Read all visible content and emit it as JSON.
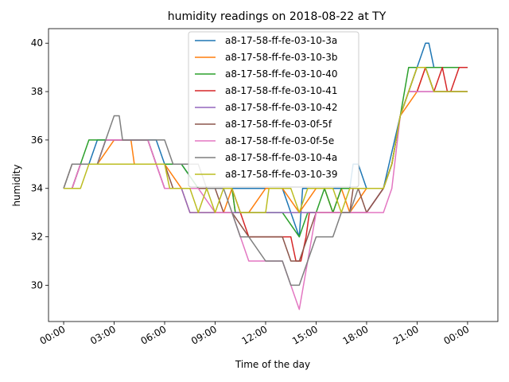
{
  "chart_data": {
    "type": "line",
    "title": "humidity readings on 2018-08-22 at TY",
    "xlabel": "Time of the day",
    "ylabel": "humidity",
    "xlim": [
      -0.9,
      25.8
    ],
    "ylim": [
      28.5,
      40.6
    ],
    "x_tick_labels": [
      "00:00",
      "03:00",
      "06:00",
      "09:00",
      "12:00",
      "15:00",
      "18:00",
      "21:00",
      "00:00"
    ],
    "y_tick_labels": [
      "30",
      "32",
      "34",
      "36",
      "38",
      "40"
    ],
    "legend_position": "upper center",
    "grid": false,
    "series": [
      {
        "name": "a8-17-58-ff-fe-03-10-3a",
        "color": "#1f77b4",
        "points": [
          [
            0,
            34
          ],
          [
            0.5,
            34
          ],
          [
            1,
            35
          ],
          [
            1.5,
            35
          ],
          [
            2,
            36
          ],
          [
            3,
            36
          ],
          [
            4,
            36
          ],
          [
            5,
            36
          ],
          [
            5.5,
            36
          ],
          [
            6,
            35
          ],
          [
            7,
            35
          ],
          [
            8,
            34
          ],
          [
            9,
            34
          ],
          [
            10,
            34
          ],
          [
            11,
            34
          ],
          [
            12,
            34
          ],
          [
            13,
            34
          ],
          [
            14,
            32
          ],
          [
            14.2,
            34
          ],
          [
            15,
            34
          ],
          [
            16,
            34
          ],
          [
            17,
            34
          ],
          [
            17.2,
            35
          ],
          [
            17.5,
            35
          ],
          [
            18,
            34
          ],
          [
            19,
            34
          ],
          [
            20,
            37
          ],
          [
            20.5,
            38
          ],
          [
            21,
            39
          ],
          [
            21.5,
            40
          ],
          [
            21.7,
            40
          ],
          [
            22,
            39
          ],
          [
            23,
            39
          ],
          [
            24,
            39
          ]
        ]
      },
      {
        "name": "a8-17-58-ff-fe-03-10-3b",
        "color": "#ff7f0e",
        "points": [
          [
            0,
            34
          ],
          [
            0.5,
            34
          ],
          [
            1,
            35
          ],
          [
            2,
            35
          ],
          [
            3,
            36
          ],
          [
            4,
            36
          ],
          [
            4.2,
            35
          ],
          [
            5,
            35
          ],
          [
            6,
            35
          ],
          [
            7,
            34
          ],
          [
            7.5,
            33
          ],
          [
            8,
            33
          ],
          [
            9,
            33
          ],
          [
            9.5,
            33
          ],
          [
            10,
            34
          ],
          [
            10.2,
            33
          ],
          [
            11,
            33
          ],
          [
            12,
            34
          ],
          [
            13,
            34
          ],
          [
            14,
            33
          ],
          [
            15,
            34
          ],
          [
            15.5,
            34
          ],
          [
            16,
            33
          ],
          [
            16.5,
            34
          ],
          [
            17,
            33
          ],
          [
            18,
            34
          ],
          [
            19,
            34
          ],
          [
            19.5,
            35
          ],
          [
            20,
            37
          ],
          [
            21,
            38
          ],
          [
            21.5,
            39
          ],
          [
            22,
            38
          ],
          [
            23,
            38
          ],
          [
            24,
            38
          ]
        ]
      },
      {
        "name": "a8-17-58-ff-fe-03-10-40",
        "color": "#2ca02c",
        "points": [
          [
            0,
            34
          ],
          [
            0.5,
            34
          ],
          [
            1,
            35
          ],
          [
            1.5,
            36
          ],
          [
            2,
            36
          ],
          [
            3,
            36
          ],
          [
            4,
            36
          ],
          [
            5,
            36
          ],
          [
            5.5,
            35
          ],
          [
            6,
            35
          ],
          [
            7,
            35
          ],
          [
            8,
            34
          ],
          [
            9,
            34
          ],
          [
            10,
            34
          ],
          [
            10.2,
            33
          ],
          [
            11,
            33
          ],
          [
            12,
            33
          ],
          [
            13,
            33
          ],
          [
            14,
            32
          ],
          [
            14.5,
            33
          ],
          [
            15,
            33
          ],
          [
            15.5,
            34
          ],
          [
            16,
            33
          ],
          [
            16.5,
            34
          ],
          [
            17,
            34
          ],
          [
            18,
            34
          ],
          [
            19,
            34
          ],
          [
            19.5,
            35
          ],
          [
            20,
            37
          ],
          [
            20.5,
            39
          ],
          [
            21,
            39
          ],
          [
            22,
            39
          ],
          [
            23,
            39
          ],
          [
            24,
            39
          ]
        ]
      },
      {
        "name": "a8-17-58-ff-fe-03-10-41",
        "color": "#d62728",
        "points": [
          [
            0,
            34
          ],
          [
            0.5,
            34
          ],
          [
            1,
            35
          ],
          [
            2,
            35
          ],
          [
            2.5,
            36
          ],
          [
            3,
            36
          ],
          [
            4,
            36
          ],
          [
            5,
            36
          ],
          [
            5.5,
            35
          ],
          [
            6,
            34
          ],
          [
            7,
            34
          ],
          [
            8,
            34
          ],
          [
            9,
            34
          ],
          [
            10,
            34
          ],
          [
            11,
            32
          ],
          [
            12,
            32
          ],
          [
            13,
            32
          ],
          [
            13.5,
            32
          ],
          [
            13.8,
            31
          ],
          [
            14.1,
            31
          ],
          [
            14.4,
            32
          ],
          [
            14.6,
            33
          ],
          [
            15,
            33
          ],
          [
            16,
            33
          ],
          [
            17,
            33
          ],
          [
            18,
            33
          ],
          [
            19,
            34
          ],
          [
            19.5,
            35
          ],
          [
            20,
            37
          ],
          [
            20.5,
            38
          ],
          [
            21,
            38
          ],
          [
            21.5,
            39
          ],
          [
            22,
            38
          ],
          [
            22.5,
            39
          ],
          [
            22.8,
            38
          ],
          [
            23,
            38
          ],
          [
            23.5,
            39
          ],
          [
            24,
            39
          ]
        ]
      },
      {
        "name": "a8-17-58-ff-fe-03-10-42",
        "color": "#9467bd",
        "points": [
          [
            0,
            34
          ],
          [
            0.5,
            34
          ],
          [
            1,
            35
          ],
          [
            2,
            35
          ],
          [
            2.5,
            36
          ],
          [
            3,
            36
          ],
          [
            4,
            36
          ],
          [
            5,
            36
          ],
          [
            5.5,
            35
          ],
          [
            6,
            34
          ],
          [
            7,
            34
          ],
          [
            7.5,
            33
          ],
          [
            8,
            33
          ],
          [
            9,
            33
          ],
          [
            9.5,
            33
          ],
          [
            10,
            33
          ],
          [
            11,
            33
          ],
          [
            12,
            33
          ],
          [
            13,
            33
          ],
          [
            14,
            33
          ],
          [
            14.5,
            33
          ],
          [
            15,
            33
          ],
          [
            16,
            33
          ],
          [
            17,
            33
          ],
          [
            18,
            33
          ],
          [
            19,
            34
          ],
          [
            19.5,
            35
          ],
          [
            20,
            37
          ],
          [
            20.5,
            38
          ],
          [
            21,
            38
          ],
          [
            21.5,
            38
          ],
          [
            22,
            38
          ],
          [
            23,
            38
          ],
          [
            24,
            38
          ]
        ]
      },
      {
        "name": "a8-17-58-ff-fe-03-0f-5f",
        "color": "#8c564b",
        "points": [
          [
            0,
            34
          ],
          [
            0.5,
            35
          ],
          [
            1,
            35
          ],
          [
            2,
            35
          ],
          [
            3,
            35
          ],
          [
            4,
            35
          ],
          [
            5,
            35
          ],
          [
            6,
            35
          ],
          [
            6.5,
            34
          ],
          [
            7,
            34
          ],
          [
            8,
            34
          ],
          [
            9,
            34
          ],
          [
            9.5,
            33
          ],
          [
            10,
            33
          ],
          [
            11,
            32
          ],
          [
            12,
            32
          ],
          [
            13,
            32
          ],
          [
            13.5,
            31
          ],
          [
            14,
            31
          ],
          [
            14.5,
            32
          ],
          [
            15,
            33
          ],
          [
            16,
            33
          ],
          [
            17,
            33
          ],
          [
            17.2,
            34
          ],
          [
            17.5,
            34
          ],
          [
            18,
            33
          ],
          [
            19,
            34
          ],
          [
            19.5,
            35
          ],
          [
            20,
            37
          ],
          [
            20.5,
            38
          ],
          [
            21,
            39
          ],
          [
            21.5,
            39
          ],
          [
            22,
            38
          ],
          [
            23,
            38
          ],
          [
            24,
            38
          ]
        ]
      },
      {
        "name": "a8-17-58-ff-fe-03-0f-5e",
        "color": "#e377c2",
        "points": [
          [
            0,
            34
          ],
          [
            0.5,
            34
          ],
          [
            1,
            35
          ],
          [
            2,
            35
          ],
          [
            2.5,
            36
          ],
          [
            3,
            36
          ],
          [
            4,
            36
          ],
          [
            5,
            36
          ],
          [
            5.5,
            35
          ],
          [
            6,
            34
          ],
          [
            7,
            34
          ],
          [
            8,
            34
          ],
          [
            9,
            33
          ],
          [
            10,
            33
          ],
          [
            11,
            31
          ],
          [
            12,
            31
          ],
          [
            13,
            31
          ],
          [
            13.5,
            30
          ],
          [
            14,
            29
          ],
          [
            14.5,
            31
          ],
          [
            15,
            33
          ],
          [
            16,
            33
          ],
          [
            17,
            33
          ],
          [
            18,
            33
          ],
          [
            19,
            33
          ],
          [
            19.5,
            34
          ],
          [
            20,
            37
          ],
          [
            20.5,
            38
          ],
          [
            21,
            38
          ],
          [
            22,
            38
          ],
          [
            23,
            38
          ],
          [
            24,
            38
          ]
        ]
      },
      {
        "name": "a8-17-58-ff-fe-03-10-4a",
        "color": "#7f7f7f",
        "points": [
          [
            0,
            34
          ],
          [
            0.5,
            35
          ],
          [
            1,
            35
          ],
          [
            2,
            35
          ],
          [
            2.5,
            36
          ],
          [
            3,
            37
          ],
          [
            3.3,
            37
          ],
          [
            3.5,
            36
          ],
          [
            4,
            36
          ],
          [
            5,
            36
          ],
          [
            6,
            36
          ],
          [
            6.5,
            35
          ],
          [
            7,
            35
          ],
          [
            8,
            35
          ],
          [
            8.5,
            34
          ],
          [
            9,
            34
          ],
          [
            9.5,
            34
          ],
          [
            10,
            33
          ],
          [
            10.5,
            32
          ],
          [
            11,
            32
          ],
          [
            12,
            31
          ],
          [
            12.5,
            31
          ],
          [
            13,
            31
          ],
          [
            13.5,
            30
          ],
          [
            14,
            30
          ],
          [
            14.5,
            31
          ],
          [
            15,
            32
          ],
          [
            16,
            32
          ],
          [
            16.5,
            33
          ],
          [
            17,
            33
          ],
          [
            17.5,
            34
          ],
          [
            18,
            34
          ],
          [
            18.5,
            34
          ],
          [
            19,
            34
          ],
          [
            19.5,
            35
          ],
          [
            20,
            37
          ],
          [
            20.5,
            38
          ],
          [
            21,
            39
          ],
          [
            21.5,
            39
          ],
          [
            22,
            38
          ],
          [
            23,
            38
          ],
          [
            24,
            38
          ]
        ]
      },
      {
        "name": "a8-17-58-ff-fe-03-10-39",
        "color": "#bcbd22",
        "points": [
          [
            0,
            34
          ],
          [
            0.5,
            34
          ],
          [
            1,
            34
          ],
          [
            1.5,
            35
          ],
          [
            2,
            35
          ],
          [
            3,
            35
          ],
          [
            4,
            35
          ],
          [
            5,
            35
          ],
          [
            6,
            35
          ],
          [
            6.3,
            34
          ],
          [
            7,
            34
          ],
          [
            7.5,
            34
          ],
          [
            8,
            33
          ],
          [
            8.5,
            34
          ],
          [
            9,
            33
          ],
          [
            9.5,
            34
          ],
          [
            10,
            34
          ],
          [
            10.5,
            33
          ],
          [
            11,
            33
          ],
          [
            12,
            33
          ],
          [
            12.2,
            34
          ],
          [
            13,
            34
          ],
          [
            13.5,
            34
          ],
          [
            14,
            33
          ],
          [
            14.5,
            34
          ],
          [
            15,
            34
          ],
          [
            16,
            34
          ],
          [
            16.5,
            33
          ],
          [
            17,
            34
          ],
          [
            18,
            34
          ],
          [
            19,
            34
          ],
          [
            19.5,
            35
          ],
          [
            20,
            37
          ],
          [
            20.5,
            38
          ],
          [
            21,
            39
          ],
          [
            21.5,
            39
          ],
          [
            22,
            38
          ],
          [
            23,
            38
          ],
          [
            24,
            38
          ]
        ]
      }
    ]
  }
}
